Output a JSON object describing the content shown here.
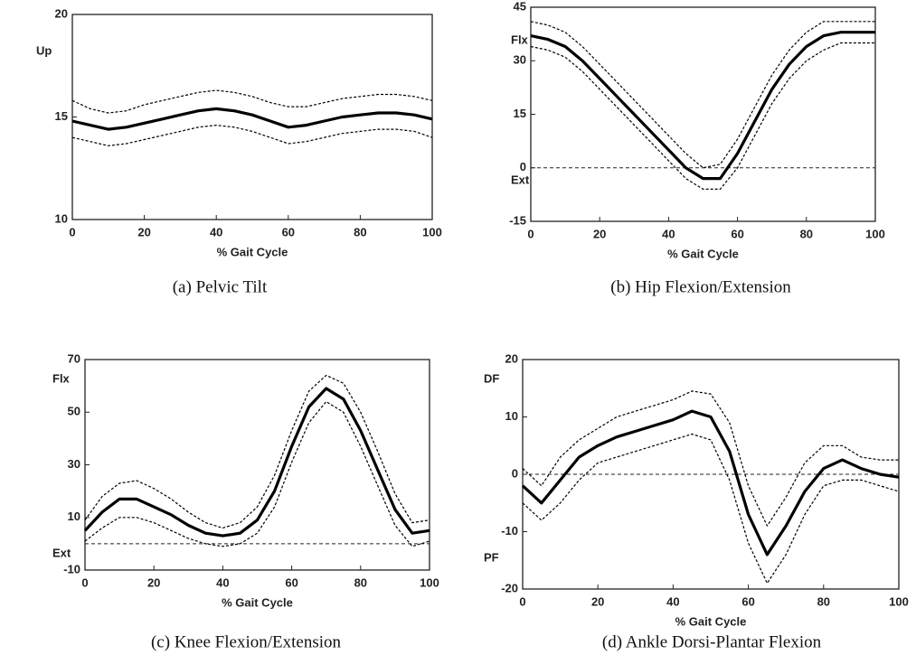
{
  "chart_data": [
    {
      "type": "line",
      "caption": "(a) Pelvic Tilt",
      "x_label": "% Gait Cycle",
      "annotations": [
        "Up"
      ],
      "x": [
        0,
        5,
        10,
        15,
        20,
        25,
        30,
        35,
        40,
        45,
        50,
        55,
        60,
        65,
        70,
        75,
        80,
        85,
        90,
        95,
        100
      ],
      "xlim": [
        0,
        100
      ],
      "xticks": [
        0,
        20,
        40,
        60,
        80,
        100
      ],
      "ylim": [
        10,
        20
      ],
      "yticks": [
        10,
        15,
        20
      ],
      "series": [
        {
          "color": "#000000",
          "style": "solid",
          "values": [
            14.8,
            14.6,
            14.4,
            14.5,
            14.7,
            14.9,
            15.1,
            15.3,
            15.4,
            15.3,
            15.1,
            14.8,
            14.5,
            14.6,
            14.8,
            15.0,
            15.1,
            15.2,
            15.2,
            15.1,
            14.9
          ]
        },
        {
          "color": "#000000",
          "style": "dashed",
          "values": [
            15.8,
            15.4,
            15.2,
            15.3,
            15.6,
            15.8,
            16.0,
            16.2,
            16.3,
            16.2,
            16.0,
            15.7,
            15.5,
            15.5,
            15.7,
            15.9,
            16.0,
            16.1,
            16.1,
            16.0,
            15.8
          ]
        },
        {
          "color": "#000000",
          "style": "dashed",
          "values": [
            14.0,
            13.8,
            13.6,
            13.7,
            13.9,
            14.1,
            14.3,
            14.5,
            14.6,
            14.5,
            14.3,
            14.0,
            13.7,
            13.8,
            14.0,
            14.2,
            14.3,
            14.4,
            14.4,
            14.3,
            14.0
          ]
        }
      ]
    },
    {
      "type": "line",
      "caption": "(b) Hip Flexion/Extension",
      "x_label": "% Gait Cycle",
      "annotations": [
        "Flx",
        "Ext"
      ],
      "x": [
        0,
        5,
        10,
        15,
        20,
        25,
        30,
        35,
        40,
        45,
        50,
        55,
        60,
        65,
        70,
        75,
        80,
        85,
        90,
        95,
        100
      ],
      "xlim": [
        0,
        100
      ],
      "xticks": [
        0,
        20,
        40,
        60,
        80,
        100
      ],
      "ylim": [
        -15,
        45
      ],
      "yticks": [
        -15,
        0,
        15,
        30,
        45
      ],
      "hline": 0,
      "series": [
        {
          "color": "#000000",
          "style": "solid",
          "values": [
            37,
            36,
            34,
            30,
            25,
            20,
            15,
            10,
            5,
            0,
            -3,
            -3,
            4,
            13,
            22,
            29,
            34,
            37,
            38,
            38,
            38
          ]
        },
        {
          "color": "#000000",
          "style": "dashed",
          "values": [
            41,
            40,
            38,
            34,
            29,
            24,
            19,
            14,
            9,
            4,
            0,
            1,
            8,
            17,
            26,
            33,
            38,
            41,
            41,
            41,
            41
          ]
        },
        {
          "color": "#000000",
          "style": "dashed",
          "values": [
            34,
            33,
            31,
            27,
            22,
            17,
            12,
            7,
            2,
            -3,
            -6,
            -6,
            0,
            9,
            18,
            25,
            30,
            33,
            35,
            35,
            35
          ]
        }
      ]
    },
    {
      "type": "line",
      "caption": "(c) Knee Flexion/Extension",
      "x_label": "% Gait Cycle",
      "annotations": [
        "Flx",
        "Ext"
      ],
      "x": [
        0,
        5,
        10,
        15,
        20,
        25,
        30,
        35,
        40,
        45,
        50,
        55,
        60,
        65,
        70,
        75,
        80,
        85,
        90,
        95,
        100
      ],
      "xlim": [
        0,
        100
      ],
      "xticks": [
        0,
        20,
        40,
        60,
        80,
        100
      ],
      "ylim": [
        -10,
        70
      ],
      "yticks": [
        -10,
        10,
        30,
        50,
        70
      ],
      "hline": 0,
      "series": [
        {
          "color": "#000000",
          "style": "solid",
          "values": [
            5,
            12,
            17,
            17,
            14,
            11,
            7,
            4,
            3,
            4,
            9,
            20,
            37,
            52,
            59,
            55,
            43,
            28,
            13,
            4,
            5
          ]
        },
        {
          "color": "#000000",
          "style": "dashed",
          "values": [
            9,
            18,
            23,
            24,
            21,
            17,
            12,
            8,
            6,
            8,
            14,
            26,
            43,
            58,
            64,
            61,
            50,
            35,
            19,
            8,
            9
          ]
        },
        {
          "color": "#000000",
          "style": "dashed",
          "values": [
            1,
            6,
            10,
            10,
            8,
            5,
            2,
            0,
            -1,
            0,
            4,
            14,
            31,
            46,
            54,
            50,
            37,
            22,
            7,
            -1,
            1
          ]
        }
      ]
    },
    {
      "type": "line",
      "caption": "(d) Ankle Dorsi-Plantar Flexion",
      "x_label": "% Gait Cycle",
      "annotations": [
        "DF",
        "PF"
      ],
      "x": [
        0,
        5,
        10,
        15,
        20,
        25,
        30,
        35,
        40,
        45,
        50,
        55,
        60,
        65,
        70,
        75,
        80,
        85,
        90,
        95,
        100
      ],
      "xlim": [
        0,
        100
      ],
      "xticks": [
        0,
        20,
        40,
        60,
        80,
        100
      ],
      "ylim": [
        -20,
        20
      ],
      "yticks": [
        -20,
        -10,
        0,
        10,
        20
      ],
      "hline": 0,
      "series": [
        {
          "color": "#000000",
          "style": "solid",
          "values": [
            -2,
            -5,
            -1,
            3,
            5,
            6.5,
            7.5,
            8.5,
            9.5,
            11,
            10,
            4,
            -7,
            -14,
            -9,
            -3,
            1,
            2.5,
            1,
            0,
            -0.5
          ]
        },
        {
          "color": "#000000",
          "style": "dashed",
          "values": [
            1,
            -2,
            3,
            6,
            8,
            10,
            11,
            12,
            13,
            14.5,
            14,
            9,
            -2,
            -9,
            -4,
            2,
            5,
            5,
            3,
            2.5,
            2.5
          ]
        },
        {
          "color": "#000000",
          "style": "dashed",
          "values": [
            -5,
            -8,
            -5,
            -1,
            2,
            3,
            4,
            5,
            6,
            7,
            6,
            -1,
            -12,
            -19,
            -14,
            -7,
            -2,
            -1,
            -1,
            -2,
            -3
          ]
        }
      ]
    }
  ]
}
